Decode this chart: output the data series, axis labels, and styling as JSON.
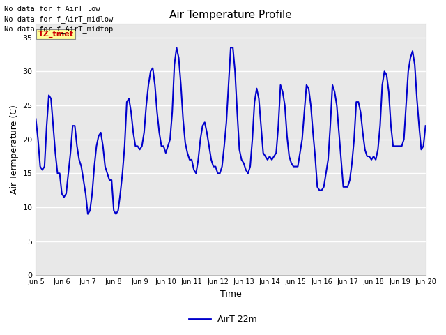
{
  "title": "Air Temperature Profile",
  "xlabel": "Time",
  "ylabel": "Air Termperature (C)",
  "legend_label": "AirT 22m",
  "line_color": "#0000cc",
  "plot_bg_color": "#e8e8e8",
  "ylim": [
    0,
    37
  ],
  "yticks": [
    0,
    5,
    10,
    15,
    20,
    25,
    30,
    35
  ],
  "annotations_top_left": [
    "No data for f_AirT_low",
    "No data for f_AirT_midlow",
    "No data for f_AirT_midtop"
  ],
  "legend_box_text": "TZ_tmet",
  "legend_box_color": "#ffff99",
  "legend_box_text_color": "#cc0000",
  "x_tick_labels": [
    "Jun 5",
    "Jun 6",
    "Jun 7",
    "Jun 8",
    "Jun 9",
    "Jun 10",
    "Jun 11",
    "Jun 12",
    "Jun 13",
    "Jun 14",
    "Jun 15",
    "Jun 16",
    "Jun 17",
    "Jun 18",
    "Jun 19",
    "Jun 20"
  ],
  "x_tick_positions": [
    0,
    24,
    48,
    72,
    96,
    120,
    144,
    168,
    192,
    216,
    240,
    264,
    288,
    312,
    336,
    360
  ],
  "time_hours": [
    0,
    2,
    4,
    6,
    8,
    10,
    12,
    14,
    16,
    18,
    20,
    22,
    24,
    26,
    28,
    30,
    32,
    34,
    36,
    38,
    40,
    42,
    44,
    46,
    48,
    50,
    52,
    54,
    56,
    58,
    60,
    62,
    64,
    66,
    68,
    70,
    72,
    74,
    76,
    78,
    80,
    82,
    84,
    86,
    88,
    90,
    92,
    94,
    96,
    98,
    100,
    102,
    104,
    106,
    108,
    110,
    112,
    114,
    116,
    118,
    120,
    122,
    124,
    126,
    128,
    130,
    132,
    134,
    136,
    138,
    140,
    142,
    144,
    146,
    148,
    150,
    152,
    154,
    156,
    158,
    160,
    162,
    164,
    166,
    168,
    170,
    172,
    174,
    176,
    178,
    180,
    182,
    184,
    186,
    188,
    190,
    192,
    194,
    196,
    198,
    200,
    202,
    204,
    206,
    208,
    210,
    212,
    214,
    216,
    218,
    220,
    222,
    224,
    226,
    228,
    230,
    232,
    234,
    236,
    238,
    240,
    242,
    244,
    246,
    248,
    250,
    252,
    254,
    256,
    258,
    260,
    262,
    264,
    266,
    268,
    270,
    272,
    274,
    276,
    278,
    280,
    282,
    284,
    286,
    288,
    290,
    292,
    294,
    296,
    298,
    300,
    302,
    304,
    306,
    308,
    310,
    312,
    314,
    316,
    318,
    320,
    322,
    324,
    326,
    328,
    330,
    332,
    334,
    336,
    338,
    340,
    342,
    344,
    346,
    348,
    350,
    352,
    354,
    356,
    358,
    360
  ],
  "temperatures": [
    23,
    20,
    16,
    15.5,
    16,
    22,
    26.5,
    26,
    22,
    18,
    15,
    15,
    12,
    11.5,
    12,
    15,
    18,
    22,
    22,
    19,
    17,
    16,
    14,
    12,
    9,
    9.5,
    12,
    16,
    19,
    20.5,
    21,
    19,
    16,
    15,
    14,
    14,
    9.5,
    9,
    9.5,
    12,
    15,
    19,
    25.5,
    26,
    24,
    21,
    19,
    19,
    18.5,
    19,
    21,
    25,
    28,
    30,
    30.5,
    28,
    24,
    21,
    19,
    19,
    18,
    19,
    20,
    24,
    31,
    33.5,
    32,
    28,
    23,
    19.5,
    18,
    17,
    17,
    15.5,
    15,
    17,
    20,
    22,
    22.5,
    21,
    19,
    17,
    16,
    16,
    15,
    15,
    16,
    19,
    22.5,
    28,
    33.5,
    33.5,
    30,
    24,
    18.5,
    17,
    16.5,
    15.5,
    15,
    16,
    20,
    25.5,
    27.5,
    26,
    22,
    18,
    17.5,
    17,
    17.5,
    17,
    17.5,
    18,
    22,
    28,
    27,
    25,
    20.5,
    17.5,
    16.5,
    16,
    16,
    16,
    18,
    20,
    24,
    28,
    27.5,
    25,
    21,
    17.5,
    13,
    12.5,
    12.5,
    13,
    15,
    17,
    22,
    28,
    27,
    25,
    21,
    17,
    13,
    13,
    13,
    14,
    16.5,
    20,
    25.5,
    25.5,
    24,
    21,
    18.5,
    17.5,
    17.5,
    17,
    17.5,
    17,
    18.5,
    22,
    28,
    30,
    29.5,
    27,
    22,
    19,
    19,
    19,
    19,
    19,
    20,
    25,
    30,
    32,
    33,
    31,
    26,
    22,
    18.5,
    19,
    22
  ]
}
